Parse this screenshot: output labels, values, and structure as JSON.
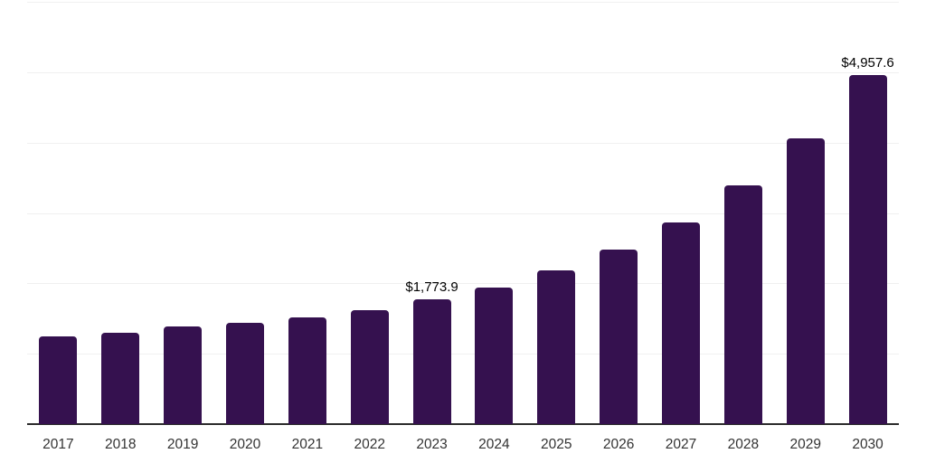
{
  "chart_data": {
    "type": "bar",
    "title": "",
    "xlabel": "",
    "ylabel": "",
    "categories": [
      "2017",
      "2018",
      "2019",
      "2020",
      "2021",
      "2022",
      "2023",
      "2024",
      "2025",
      "2026",
      "2027",
      "2028",
      "2029",
      "2030"
    ],
    "values": [
      1250,
      1295,
      1390,
      1445,
      1520,
      1625,
      1773.9,
      1945,
      2185,
      2485,
      2870,
      3390,
      4065,
      4957.6
    ],
    "data_labels": [
      "",
      "",
      "",
      "",
      "",
      "",
      "$1,773.9",
      "",
      "",
      "",
      "",
      "",
      "",
      "$4,957.6"
    ],
    "ylim": [
      0,
      6000
    ],
    "gridline_step": 1000,
    "grid": "horizontal, unlabeled",
    "legend": "none",
    "colors": {
      "bar": "#35114F",
      "gridline": "#F0F0F0",
      "axis": "#2B2B2B",
      "tick_label": "#333333",
      "data_label": "#000000"
    }
  }
}
